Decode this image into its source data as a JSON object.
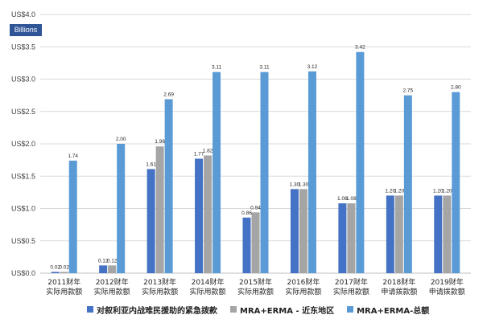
{
  "chart_data": {
    "type": "bar",
    "unit_label": "Billions",
    "categories": [
      [
        "2011财年",
        "实际用款额"
      ],
      [
        "2012财年",
        "实际用款额"
      ],
      [
        "2013财年",
        "实际用款额"
      ],
      [
        "2014财年",
        "实际用款额"
      ],
      [
        "2015财年",
        "实际用款额"
      ],
      [
        "2016财年",
        "实际用款额"
      ],
      [
        "2017财年",
        "实际用款额"
      ],
      [
        "2018财年",
        "申请拨款额"
      ],
      [
        "2019财年",
        "申请拨款额"
      ]
    ],
    "yticks": [
      "US$0.0",
      "US$0.5",
      "US$1.0",
      "US$1.5",
      "US$2.0",
      "US$2.5",
      "US$3.0",
      "US$3.5",
      "US$4.0"
    ],
    "ylim": [
      0,
      4.0
    ],
    "grid": true,
    "legend_position": "bottom",
    "series": [
      {
        "name": "对叙利亚内战难民援助的紧急拨款",
        "color": "#4472c4",
        "values": [
          0.02,
          0.12,
          1.61,
          1.77,
          0.86,
          1.3,
          1.08,
          1.2,
          1.2
        ],
        "labels": [
          "0.02",
          "0.12",
          "1.61",
          "1.77",
          "0.86",
          "1.30",
          "1.08",
          "1.20",
          "1.20"
        ]
      },
      {
        "name": "MRA+ERMA - 近东地区",
        "color": "#a5a5a5",
        "values": [
          0.02,
          0.12,
          1.96,
          1.82,
          0.94,
          1.3,
          1.08,
          1.2,
          1.2
        ],
        "labels": [
          "0.02",
          "0.12",
          "1.96",
          "1.82",
          "0.94",
          "1.30",
          "1.08",
          "1.20",
          "1.20"
        ]
      },
      {
        "name": "MRA+ERMA-总额",
        "color": "#5b9bd5",
        "values": [
          1.74,
          2.0,
          2.69,
          3.11,
          3.11,
          3.12,
          3.42,
          2.75,
          2.8
        ],
        "labels": [
          "1.74",
          "2.00",
          "2.69",
          "3.11",
          "3.11",
          "3.12",
          "3.42",
          "2.75",
          "2.80"
        ]
      }
    ]
  }
}
